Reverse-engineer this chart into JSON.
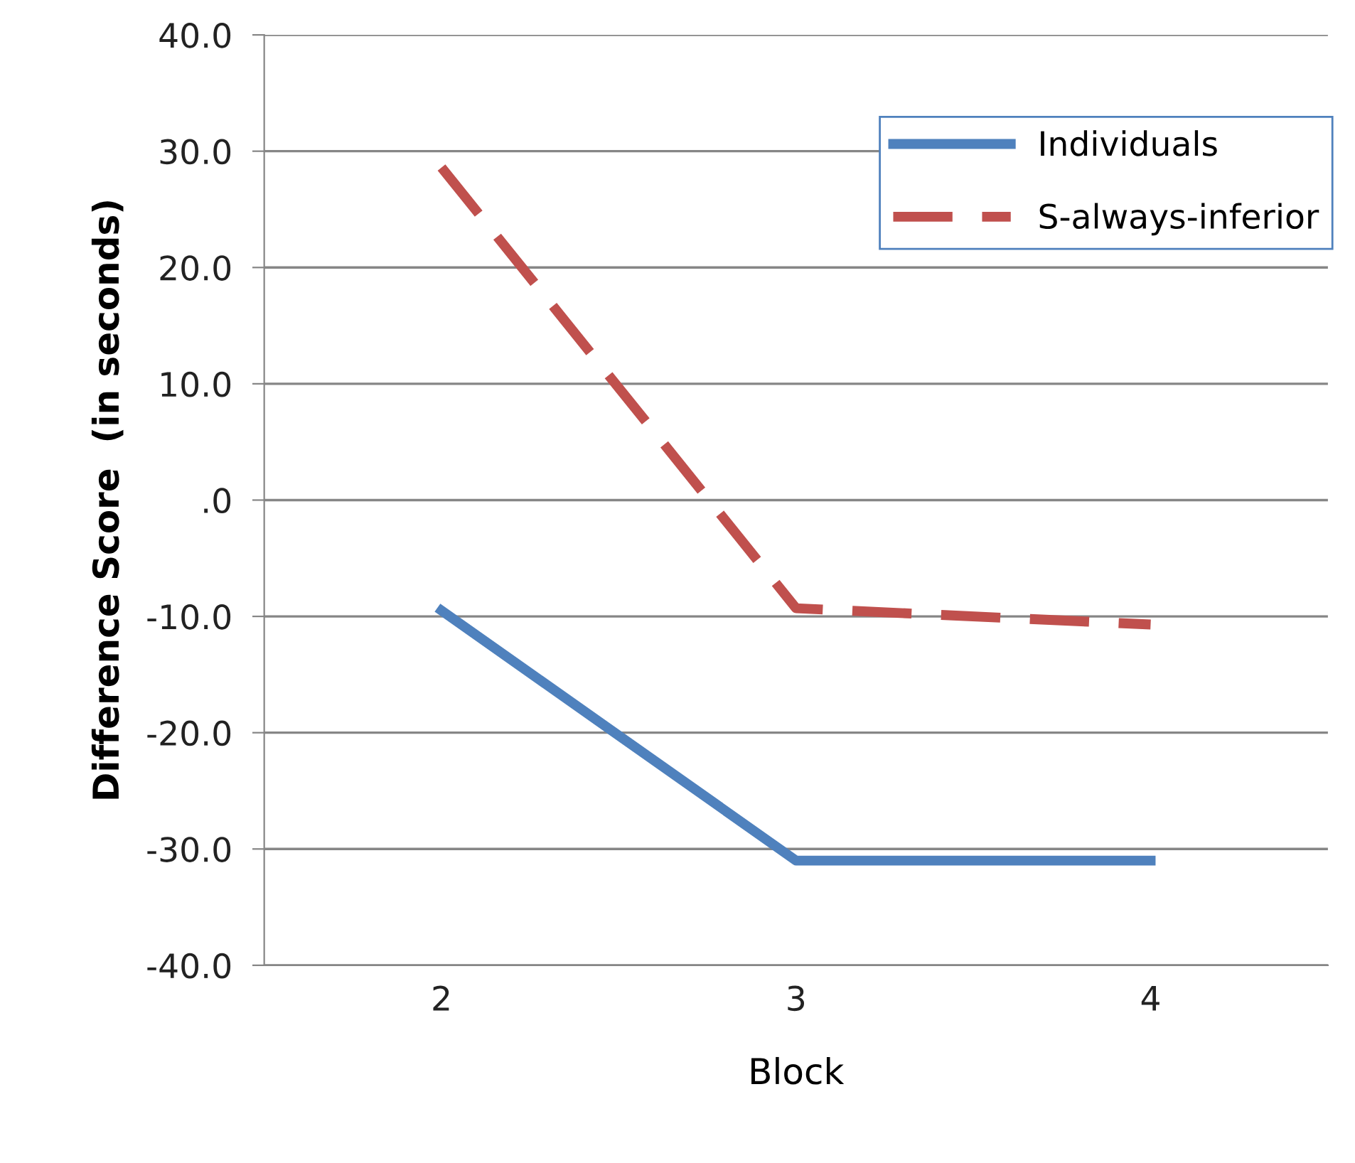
{
  "chart_data": {
    "type": "line",
    "xlabel": "Block",
    "ylabel": "Difference Score  (in seconds)",
    "categories": [
      "2",
      "3",
      "4"
    ],
    "series": [
      {
        "name": "Individuals",
        "color": "#4f81bd",
        "values": [
          -9.5,
          -31,
          -31
        ],
        "line_style": "solid"
      },
      {
        "name": "S-always-inferior",
        "color": "#c0504d",
        "values": [
          28.6,
          -9.3,
          -10.7
        ],
        "line_style": "dashed"
      }
    ],
    "ylim": [
      -40,
      40
    ],
    "yticks": [
      {
        "value": -40,
        "label": "-40.0"
      },
      {
        "value": -30,
        "label": "-30.0"
      },
      {
        "value": -20,
        "label": "-20.0"
      },
      {
        "value": -10,
        "label": "-10.0"
      },
      {
        "value": 0,
        "label": ".0"
      },
      {
        "value": 10,
        "label": "10.0"
      },
      {
        "value": 20,
        "label": "20.0"
      },
      {
        "value": 30,
        "label": "30.0"
      },
      {
        "value": 40,
        "label": "40.0"
      }
    ],
    "grid": "y",
    "legend": "top right",
    "marker": "none"
  }
}
